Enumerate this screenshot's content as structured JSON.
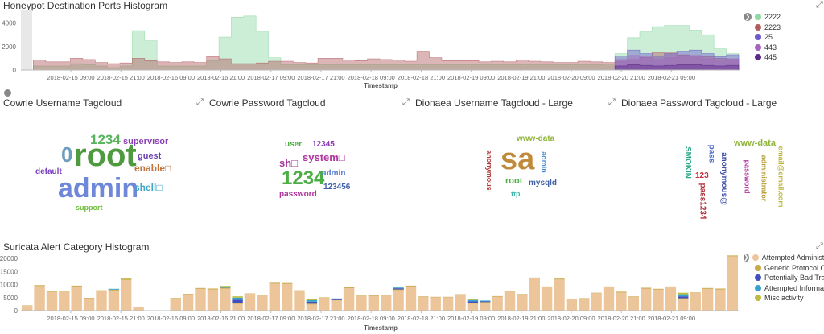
{
  "colors": {
    "p2222": "#8ed8a3",
    "p2223": "#b25c5f",
    "p25": "#6a5acd",
    "p443": "#a565bd",
    "p445": "#5b2a8a",
    "alert_main": "#ecc59a",
    "alert_c2": "#c8a84a",
    "alert_c3": "#3f4fbf",
    "alert_c4": "#35a3c9",
    "alert_c5": "#bcbc3f"
  },
  "panels": {
    "ports_title": "Honeypot Destination Ports Histogram",
    "cowrie_user_title": "Cowrie Username Tagcloud",
    "cowrie_pass_title": "Cowrie Password Tagcloud",
    "dionaea_user_title": "Dionaea Username Tagcloud - Large",
    "dionaea_pass_title": "Dionaea Password Tagcloud - Large",
    "suricata_title": "Suricata Alert Category Histogram"
  },
  "ports_legend": [
    {
      "label": "2222",
      "color": "#8ed8a3"
    },
    {
      "label": "2223",
      "color": "#b25c5f"
    },
    {
      "label": "25",
      "color": "#6a5acd"
    },
    {
      "label": "443",
      "color": "#a565bd"
    },
    {
      "label": "445",
      "color": "#5b2a8a"
    }
  ],
  "suricata_legend": [
    {
      "label": "Attempted Administr...",
      "color": "#ecc59a"
    },
    {
      "label": "Generic Protocol Co...",
      "color": "#c8a84a"
    },
    {
      "label": "Potentially Bad Traffic",
      "color": "#3f4fbf"
    },
    {
      "label": "Attempted Informati...",
      "color": "#35a3c9"
    },
    {
      "label": "Misc activity",
      "color": "#bcbc3f"
    }
  ],
  "tagclouds": {
    "cowrie_user": [
      {
        "text": "root",
        "color": "#4e9a3e"
      },
      {
        "text": "admin",
        "color": "#6f87d8"
      },
      {
        "text": "1234",
        "color": "#57b45c"
      },
      {
        "text": "0",
        "color": "#6f9dbd"
      },
      {
        "text": "supervisor",
        "color": "#8a3fb5"
      },
      {
        "text": "guest",
        "color": "#6a3fb0"
      },
      {
        "text": "enable□",
        "color": "#c0733a"
      },
      {
        "text": "default",
        "color": "#7a3fbf"
      },
      {
        "text": "shell□",
        "color": "#3fa7c8"
      },
      {
        "text": "support",
        "color": "#6bbf3b"
      }
    ],
    "cowrie_pass": [
      {
        "text": "1234",
        "color": "#4cae44"
      },
      {
        "text": "user",
        "color": "#4cae44"
      },
      {
        "text": "12345",
        "color": "#8a3fb5"
      },
      {
        "text": "system□",
        "color": "#b0359f"
      },
      {
        "text": "sh□",
        "color": "#a23a9a"
      },
      {
        "text": "admin",
        "color": "#5b7fd0"
      },
      {
        "text": "123456",
        "color": "#3f5fa8"
      },
      {
        "text": "password",
        "color": "#b0359f"
      }
    ],
    "dionaea_user": [
      {
        "text": "sa",
        "color": "#c08a3a"
      },
      {
        "text": "www-data",
        "color": "#8fb43a"
      },
      {
        "text": "anonymous",
        "color": "#b23a3a"
      },
      {
        "text": "admin",
        "color": "#4a8ad0"
      },
      {
        "text": "root",
        "color": "#4cae44"
      },
      {
        "text": "mysqld",
        "color": "#3f5fa8"
      },
      {
        "text": "ftp",
        "color": "#3fb4a8"
      }
    ],
    "dionaea_pass": [
      {
        "text": "www-data",
        "color": "#8fb43a"
      },
      {
        "text": "SMOKIN",
        "color": "#2fa88a"
      },
      {
        "text": "pass",
        "color": "#4a6ad0"
      },
      {
        "text": "anonymous@",
        "color": "#3f4fa8"
      },
      {
        "text": "password",
        "color": "#b0359f"
      },
      {
        "text": "administrator",
        "color": "#b8a03a"
      },
      {
        "text": "email@email.com",
        "color": "#b8b43a"
      },
      {
        "text": "123",
        "color": "#c0303a"
      },
      {
        "text": "pass1234",
        "color": "#b0303a"
      }
    ]
  },
  "chart_data": [
    {
      "type": "area",
      "title": "Honeypot Destination Ports Histogram",
      "xlabel": "Timestamp",
      "ylabel": "",
      "ylim": [
        0,
        5000
      ],
      "yticks": [
        0,
        2000,
        4000
      ],
      "ytick_labels": [
        "0",
        "2000",
        "4000"
      ],
      "xtick_labels": [
        "2018-02-15 09:00",
        "2018-02-15 21:00",
        "2018-02-16 09:00",
        "2018-02-16 21:00",
        "2018-02-17 09:00",
        "2018-02-17 21:00",
        "2018-02-18 09:00",
        "2018-02-18 21:00",
        "2018-02-19 09:00",
        "2018-02-19 21:00",
        "2018-02-20 09:00",
        "2018-02-20 21:00",
        "2018-02-21 09:00"
      ],
      "n_bins": 58,
      "series": [
        {
          "name": "2222",
          "values": [
            0,
            350,
            350,
            350,
            550,
            450,
            350,
            200,
            350,
            3350,
            2500,
            350,
            350,
            350,
            350,
            800,
            2800,
            4500,
            4600,
            3300,
            1050,
            450,
            450,
            450,
            450,
            450,
            450,
            450,
            450,
            450,
            450,
            450,
            450,
            450,
            450,
            450,
            450,
            450,
            450,
            450,
            450,
            450,
            450,
            450,
            450,
            450,
            450,
            500,
            1400,
            2750,
            3250,
            3700,
            3800,
            3800,
            3400,
            3000,
            1800,
            1400
          ]
        },
        {
          "name": "2223",
          "values": [
            0,
            850,
            700,
            700,
            1000,
            900,
            650,
            550,
            600,
            1000,
            800,
            700,
            650,
            700,
            650,
            1150,
            950,
            550,
            550,
            600,
            750,
            750,
            650,
            600,
            1000,
            1000,
            850,
            800,
            950,
            900,
            850,
            750,
            1600,
            1050,
            800,
            800,
            800,
            700,
            750,
            700,
            850,
            750,
            700,
            650,
            650,
            750,
            700,
            650,
            750,
            900,
            1100,
            1500,
            1550,
            1300,
            1200,
            1150,
            1000,
            900
          ]
        },
        {
          "name": "25",
          "values": [
            0,
            0,
            0,
            0,
            0,
            0,
            0,
            0,
            0,
            0,
            0,
            0,
            0,
            0,
            0,
            0,
            0,
            0,
            0,
            0,
            0,
            0,
            0,
            0,
            0,
            0,
            0,
            0,
            0,
            0,
            0,
            0,
            0,
            0,
            0,
            0,
            0,
            0,
            0,
            0,
            0,
            0,
            0,
            0,
            0,
            0,
            0,
            0,
            1200,
            1700,
            1400,
            1200,
            1400,
            1600,
            1700,
            1400,
            1150,
            1300
          ]
        },
        {
          "name": "443",
          "values": [
            0,
            0,
            0,
            0,
            0,
            0,
            0,
            0,
            0,
            0,
            0,
            0,
            0,
            0,
            0,
            0,
            0,
            0,
            0,
            0,
            0,
            0,
            0,
            0,
            0,
            0,
            0,
            0,
            0,
            0,
            0,
            0,
            0,
            0,
            0,
            0,
            0,
            0,
            0,
            0,
            0,
            0,
            0,
            0,
            0,
            0,
            0,
            0,
            900,
            1250,
            1100,
            900,
            1050,
            1250,
            1250,
            950,
            850,
            950
          ]
        },
        {
          "name": "445",
          "values": [
            0,
            0,
            0,
            0,
            0,
            0,
            0,
            0,
            0,
            0,
            0,
            0,
            0,
            0,
            0,
            0,
            0,
            0,
            0,
            0,
            0,
            0,
            0,
            0,
            0,
            0,
            0,
            0,
            0,
            0,
            0,
            0,
            0,
            0,
            0,
            0,
            0,
            0,
            0,
            0,
            0,
            0,
            0,
            0,
            0,
            0,
            0,
            0,
            350,
            450,
            400,
            350,
            400,
            450,
            450,
            400,
            350,
            400
          ]
        }
      ],
      "legend": "right"
    },
    {
      "type": "bar",
      "stacked": true,
      "title": "Suricata Alert Category Histogram",
      "xlabel": "Timestamp",
      "ylabel": "",
      "ylim": [
        0,
        21000
      ],
      "yticks": [
        0,
        5000,
        10000,
        15000,
        20000
      ],
      "ytick_labels": [
        "0",
        "5000",
        "10000",
        "15000",
        "20000"
      ],
      "xtick_labels": [
        "2018-02-15 09:00",
        "2018-02-15 21:00",
        "2018-02-16 09:00",
        "2018-02-16 21:00",
        "2018-02-17 09:00",
        "2018-02-17 21:00",
        "2018-02-18 09:00",
        "2018-02-18 21:00",
        "2018-02-19 09:00",
        "2018-02-19 21:00",
        "2018-02-20 09:00",
        "2018-02-20 21:00",
        "2018-02-21 09:00"
      ],
      "n_bins": 58,
      "series": [
        {
          "name": "Attempted Administr...",
          "values": [
            1800,
            9500,
            7200,
            7300,
            9300,
            4800,
            7500,
            7800,
            11800,
            1400,
            0,
            0,
            4700,
            6300,
            8400,
            8200,
            8500,
            2600,
            6400,
            5800,
            10400,
            10300,
            7600,
            2400,
            4900,
            3900,
            8700,
            5600,
            5700,
            5800,
            7900,
            9300,
            5300,
            5100,
            5100,
            6100,
            2700,
            3000,
            5400,
            7300,
            6200,
            12400,
            9000,
            12000,
            4400,
            4600,
            6700,
            9000,
            7000,
            5300,
            8500,
            8100,
            9000,
            4500,
            6800,
            8400,
            8200,
            20900
          ]
        },
        {
          "name": "Generic Protocol Co...",
          "values": [
            200,
            300,
            200,
            200,
            300,
            150,
            300,
            300,
            300,
            150,
            0,
            0,
            200,
            200,
            300,
            300,
            300,
            400,
            200,
            200,
            300,
            300,
            200,
            300,
            200,
            200,
            300,
            200,
            200,
            200,
            300,
            300,
            200,
            200,
            200,
            200,
            300,
            300,
            200,
            200,
            200,
            300,
            300,
            300,
            200,
            200,
            200,
            300,
            300,
            200,
            300,
            300,
            300,
            300,
            200,
            300,
            300,
            300
          ]
        },
        {
          "name": "Potentially Bad Traffic",
          "values": [
            0,
            0,
            0,
            0,
            0,
            0,
            0,
            0,
            0,
            0,
            0,
            0,
            0,
            0,
            0,
            0,
            0,
            1200,
            0,
            0,
            0,
            0,
            0,
            700,
            0,
            300,
            0,
            0,
            0,
            0,
            400,
            0,
            0,
            0,
            0,
            0,
            600,
            300,
            0,
            0,
            0,
            0,
            0,
            0,
            0,
            0,
            0,
            0,
            0,
            0,
            0,
            0,
            0,
            700,
            0,
            0,
            0,
            0
          ]
        },
        {
          "name": "Attempted Informati...",
          "values": [
            0,
            0,
            0,
            0,
            0,
            0,
            0,
            300,
            0,
            0,
            0,
            0,
            0,
            0,
            0,
            0,
            400,
            800,
            0,
            0,
            0,
            0,
            0,
            600,
            0,
            300,
            0,
            0,
            0,
            0,
            300,
            0,
            0,
            0,
            0,
            0,
            500,
            300,
            0,
            0,
            0,
            0,
            0,
            0,
            0,
            0,
            0,
            0,
            0,
            0,
            0,
            0,
            0,
            800,
            0,
            0,
            0,
            0
          ]
        },
        {
          "name": "Misc activity",
          "values": [
            0,
            0,
            0,
            0,
            0,
            0,
            0,
            0,
            300,
            0,
            0,
            0,
            0,
            0,
            0,
            0,
            300,
            500,
            0,
            0,
            0,
            0,
            0,
            600,
            0,
            0,
            0,
            0,
            0,
            0,
            0,
            0,
            0,
            0,
            0,
            0,
            500,
            0,
            0,
            0,
            0,
            0,
            0,
            0,
            0,
            0,
            0,
            0,
            0,
            0,
            0,
            0,
            0,
            600,
            0,
            0,
            0,
            0
          ]
        }
      ],
      "legend": "right"
    }
  ]
}
